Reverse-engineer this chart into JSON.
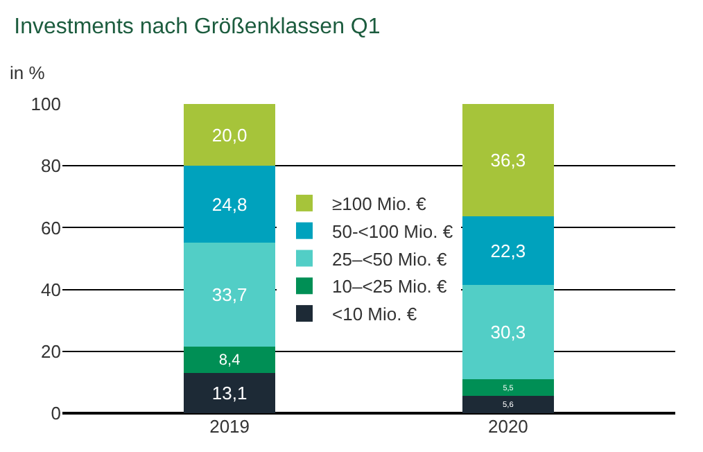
{
  "chart_data": {
    "type": "bar",
    "title": "Investments nach Größenklassen Q1",
    "ylabel": "in %",
    "categories": [
      "2019",
      "2020"
    ],
    "stacked": true,
    "series": [
      {
        "name": "<10 Mio. €",
        "color": "#1d2a36",
        "values": [
          13.1,
          5.6
        ],
        "value_labels": [
          "13,1",
          "5,6"
        ]
      },
      {
        "name": "10–<25 Mio. €",
        "color": "#008f55",
        "values": [
          8.4,
          5.5
        ],
        "value_labels": [
          "8,4",
          "5,5"
        ]
      },
      {
        "name": "25–<50 Mio. €",
        "color": "#52cec6",
        "values": [
          33.7,
          30.3
        ],
        "value_labels": [
          "33,7",
          "30,3"
        ]
      },
      {
        "name": "50-<100 Mio. €",
        "color": "#00a2bd",
        "values": [
          24.8,
          22.3
        ],
        "value_labels": [
          "24,8",
          "22,3"
        ]
      },
      {
        "name": "≥100 Mio. €",
        "color": "#a6c43a",
        "values": [
          20.0,
          36.3
        ],
        "value_labels": [
          "20,0",
          "36,3"
        ]
      }
    ],
    "ylim": [
      0,
      100
    ],
    "yticks": [
      0,
      20,
      40,
      60,
      80,
      100
    ],
    "grid": "y",
    "legend": "center"
  }
}
